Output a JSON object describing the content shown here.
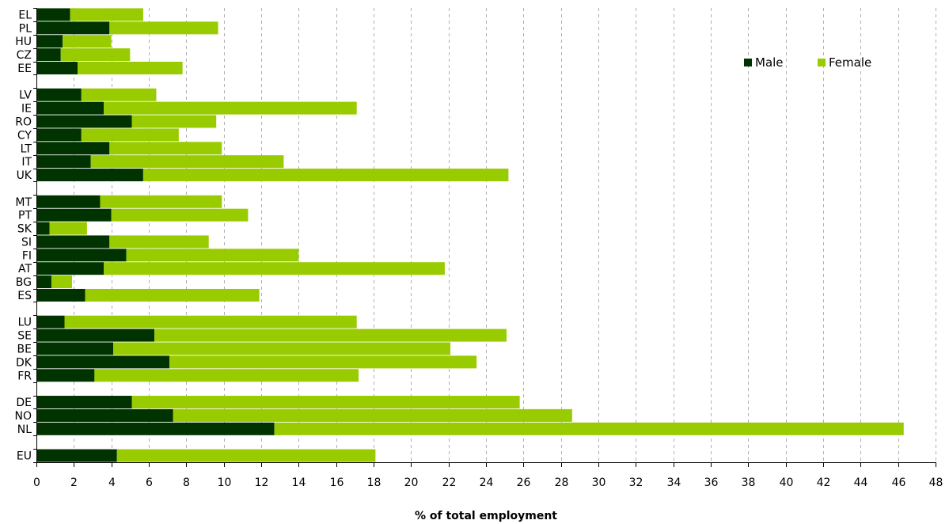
{
  "chart_data": {
    "type": "bar",
    "orientation": "horizontal",
    "stacked": true,
    "xlabel": "% of total employment",
    "xlim": [
      0,
      48
    ],
    "x_ticks": [
      0,
      2,
      4,
      6,
      8,
      10,
      12,
      14,
      16,
      18,
      20,
      22,
      24,
      26,
      28,
      30,
      32,
      34,
      36,
      38,
      40,
      42,
      44,
      46,
      48
    ],
    "grid": "vertical-dashed",
    "legend_position": "top-right",
    "categories": [
      "EL",
      "PL",
      "HU",
      "CZ",
      "EE",
      "",
      "LV",
      "IE",
      "RO",
      "CY",
      "LT",
      "IT",
      "UK",
      "",
      "MT",
      "PT",
      "SK",
      "SI",
      "FI",
      "AT",
      "BG",
      "ES",
      "",
      "LU",
      "SE",
      "BE",
      "DK",
      "FR",
      "",
      "DE",
      "NO",
      "NL",
      "",
      "EU"
    ],
    "series": [
      {
        "name": "Male",
        "color": "#003300",
        "values": [
          1.8,
          3.9,
          1.4,
          1.3,
          2.2,
          null,
          2.4,
          3.6,
          5.1,
          2.4,
          3.9,
          2.9,
          5.7,
          null,
          3.4,
          4.0,
          0.7,
          3.9,
          4.8,
          3.6,
          0.8,
          2.6,
          null,
          1.5,
          6.3,
          4.1,
          7.1,
          3.1,
          null,
          5.1,
          7.3,
          12.7,
          null,
          4.3
        ]
      },
      {
        "name": "Female",
        "color": "#99cc00",
        "values": [
          3.9,
          5.8,
          2.6,
          3.7,
          5.6,
          null,
          4.0,
          13.5,
          4.5,
          5.2,
          6.0,
          10.3,
          19.5,
          null,
          6.5,
          7.3,
          2.0,
          5.3,
          9.2,
          18.2,
          1.1,
          9.3,
          null,
          15.6,
          18.8,
          18.0,
          16.4,
          14.1,
          null,
          20.7,
          21.3,
          33.6,
          null,
          13.8
        ]
      }
    ]
  }
}
